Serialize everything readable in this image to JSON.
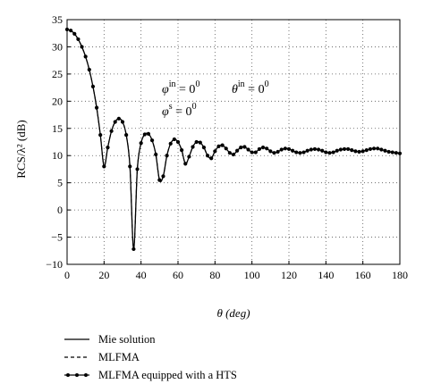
{
  "chart_data": {
    "type": "line",
    "xlabel": "θ (deg)",
    "ylabel": "RCS/λ² (dB)",
    "xlim": [
      0,
      180
    ],
    "ylim": [
      -10,
      35
    ],
    "xticks": [
      0,
      20,
      40,
      60,
      80,
      100,
      120,
      140,
      160,
      180
    ],
    "yticks": [
      -10,
      -5,
      0,
      5,
      10,
      15,
      20,
      25,
      30,
      35
    ],
    "grid": "dotted",
    "legend_position": "below plot",
    "annotations": {
      "phi_in": {
        "base": "φ",
        "sup": "in",
        "value": " = 0",
        "value_sup": "0"
      },
      "theta_in": {
        "base": "θ",
        "sup": "in",
        "value": " = 0",
        "value_sup": "0"
      },
      "phi_s": {
        "base": "φ",
        "sup": "s",
        "value": " = 0",
        "value_sup": "0"
      }
    },
    "series": [
      {
        "name": "Mie solution",
        "style": "solid"
      },
      {
        "name": "MLFMA",
        "style": "dashed"
      },
      {
        "name": "MLFMA equipped with a HTS",
        "style": "solid-markers"
      }
    ],
    "x": [
      0,
      2,
      4,
      6,
      8,
      10,
      12,
      14,
      16,
      18,
      20,
      22,
      24,
      26,
      28,
      30,
      32,
      34,
      36,
      38,
      40,
      42,
      44,
      46,
      48,
      50,
      52,
      54,
      56,
      58,
      60,
      62,
      64,
      66,
      68,
      70,
      72,
      74,
      76,
      78,
      80,
      82,
      84,
      86,
      88,
      90,
      92,
      94,
      96,
      98,
      100,
      102,
      104,
      106,
      108,
      110,
      112,
      114,
      116,
      118,
      120,
      122,
      124,
      126,
      128,
      130,
      132,
      134,
      136,
      138,
      140,
      142,
      144,
      146,
      148,
      150,
      152,
      154,
      156,
      158,
      160,
      162,
      164,
      166,
      168,
      170,
      172,
      174,
      176,
      178,
      180
    ],
    "y": [
      33.2,
      33.0,
      32.4,
      31.4,
      30.0,
      28.2,
      25.8,
      22.7,
      18.8,
      13.8,
      8.0,
      11.5,
      14.5,
      16.2,
      16.8,
      16.2,
      13.8,
      8.0,
      -7.2,
      7.5,
      12.3,
      13.9,
      14.0,
      12.8,
      10.2,
      5.5,
      6.2,
      10.0,
      12.2,
      13.0,
      12.5,
      11.0,
      8.5,
      9.8,
      11.6,
      12.5,
      12.4,
      11.5,
      10.0,
      9.5,
      10.8,
      11.7,
      11.9,
      11.3,
      10.5,
      10.2,
      10.9,
      11.5,
      11.6,
      11.1,
      10.6,
      10.6,
      11.2,
      11.5,
      11.3,
      10.8,
      10.5,
      10.7,
      11.1,
      11.3,
      11.2,
      10.9,
      10.6,
      10.5,
      10.6,
      10.9,
      11.1,
      11.2,
      11.1,
      10.9,
      10.6,
      10.5,
      10.6,
      10.9,
      11.1,
      11.2,
      11.2,
      11.0,
      10.8,
      10.7,
      10.8,
      11.0,
      11.2,
      11.3,
      11.3,
      11.1,
      10.9,
      10.7,
      10.6,
      10.5,
      10.4
    ]
  }
}
